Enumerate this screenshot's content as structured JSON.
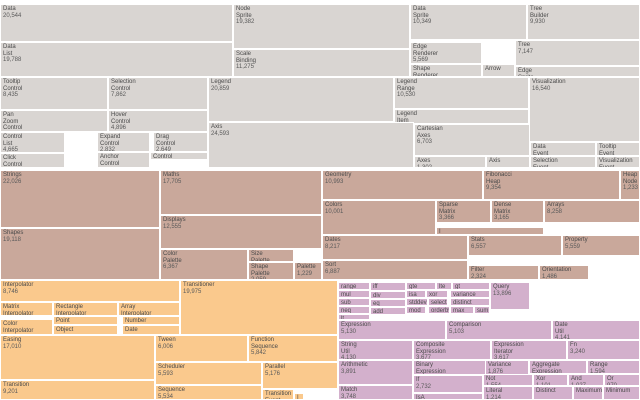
{
  "chart_data": {
    "type": "treemap",
    "palette": {
      "animate": "#fac98d",
      "data": "#d5b8d5",
      "display": "#c3bcbb",
      "physics": "#d5c6c0",
      "query": "#d3b0cc",
      "scale": "#e0dada",
      "util": "#c9a89b",
      "vis": "#d9d5d2"
    },
    "nodes": [
      {
        "group": "vis",
        "label": "Data",
        "value": "20,544"
      },
      {
        "group": "vis",
        "label": "Node\nSprite",
        "value": "19,382"
      },
      {
        "group": "vis",
        "label": "Data\nSprite",
        "value": "10,349"
      },
      {
        "group": "vis",
        "label": "Tree\nBuilder",
        "value": "9,930"
      },
      {
        "group": "vis",
        "label": "Data\nList",
        "value": "19,788"
      },
      {
        "group": "vis",
        "label": "Scale\nBinding",
        "value": "11,275"
      },
      {
        "group": "vis",
        "label": "Edge\nRenderer",
        "value": "5,569"
      },
      {
        "group": "vis",
        "label": "Tree",
        "value": "7,147"
      },
      {
        "group": "vis",
        "label": "Shape\nRenderer",
        "value": ""
      },
      {
        "group": "vis",
        "label": "Arrow",
        "value": ""
      },
      {
        "group": "vis",
        "label": "Edge\nSprite",
        "value": ""
      },
      {
        "group": "vis",
        "label": "Tooltip\nControl",
        "value": "8,435"
      },
      {
        "group": "vis",
        "label": "Selection\nControl",
        "value": "7,862"
      },
      {
        "group": "vis",
        "label": "Legend",
        "value": "20,859"
      },
      {
        "group": "vis",
        "label": "Legend\nRange",
        "value": "10,530"
      },
      {
        "group": "vis",
        "label": "Visualization",
        "value": "16,540"
      },
      {
        "group": "vis",
        "label": "Pan\nZoom\nControl",
        "value": "5,222"
      },
      {
        "group": "vis",
        "label": "Hover\nControl",
        "value": "4,896"
      },
      {
        "group": "vis",
        "label": "Legend\nItem",
        "value": ""
      },
      {
        "group": "vis",
        "label": "Axis",
        "value": "24,593"
      },
      {
        "group": "vis",
        "label": "Cartesian\nAxes",
        "value": "6,703"
      },
      {
        "group": "vis",
        "label": "Control\nList",
        "value": "4,665"
      },
      {
        "group": "vis",
        "label": "Expand\nControl",
        "value": "2,832"
      },
      {
        "group": "vis",
        "label": "Drag\nControl",
        "value": "2,649"
      },
      {
        "group": "vis",
        "label": "Data\nEvent",
        "value": ""
      },
      {
        "group": "vis",
        "label": "Tooltip\nEvent",
        "value": ""
      },
      {
        "group": "vis",
        "label": "Click\nControl",
        "value": "3,824"
      },
      {
        "group": "vis",
        "label": "Anchor\nControl",
        "value": "2,138"
      },
      {
        "group": "vis",
        "label": "Control",
        "value": ""
      },
      {
        "group": "vis",
        "label": "Axes",
        "value": "1,302"
      },
      {
        "group": "vis",
        "label": "Axis",
        "value": ""
      },
      {
        "group": "vis",
        "label": "Selection\nEvent",
        "value": ""
      },
      {
        "group": "vis",
        "label": "Visualization\nEvent",
        "value": ""
      },
      {
        "group": "util",
        "label": "Strings",
        "value": "22,026"
      },
      {
        "group": "util",
        "label": "Maths",
        "value": "17,705"
      },
      {
        "group": "util",
        "label": "Geometry",
        "value": "10,993"
      },
      {
        "group": "util",
        "label": "Fibonacci\nHeap",
        "value": "9,354"
      },
      {
        "group": "util",
        "label": "Heap\nNode",
        "value": "1,233"
      },
      {
        "group": "util",
        "label": "Colors",
        "value": "10,001"
      },
      {
        "group": "util",
        "label": "Sparse\nMatrix",
        "value": "3,366"
      },
      {
        "group": "util",
        "label": "Dense\nMatrix",
        "value": "3,165"
      },
      {
        "group": "util",
        "label": "Arrays",
        "value": "8,258"
      },
      {
        "group": "util",
        "label": "Displays",
        "value": "12,555"
      },
      {
        "group": "util",
        "label": "I\nMatrix",
        "value": ""
      },
      {
        "group": "util",
        "label": "Shapes",
        "value": "19,118"
      },
      {
        "group": "util",
        "label": "Dates",
        "value": "8,217"
      },
      {
        "group": "util",
        "label": "Stats",
        "value": "6,557"
      },
      {
        "group": "util",
        "label": "Property",
        "value": "5,559"
      },
      {
        "group": "util",
        "label": "Color\nPalette",
        "value": "6,367"
      },
      {
        "group": "util",
        "label": "Size\nPalette",
        "value": ""
      },
      {
        "group": "util",
        "label": "Shape\nPalette",
        "value": "2,059"
      },
      {
        "group": "util",
        "label": "Palette",
        "value": "1,229"
      },
      {
        "group": "util",
        "label": "Sort",
        "value": "6,887"
      },
      {
        "group": "util",
        "label": "Filter",
        "value": "2,324"
      },
      {
        "group": "util",
        "label": "Orientation",
        "value": "1,486"
      },
      {
        "group": "animate",
        "label": "Interpolator",
        "value": "8,746"
      },
      {
        "group": "animate",
        "label": "Transitioner",
        "value": "19,975"
      },
      {
        "group": "animate",
        "label": "Matrix\nInterpolator",
        "value": "2,202"
      },
      {
        "group": "animate",
        "label": "Rectangle\nInterpolator",
        "value": ""
      },
      {
        "group": "animate",
        "label": "Array\nInterpolator",
        "value": "1,983"
      },
      {
        "group": "animate",
        "label": "Point\nInterpolator",
        "value": ""
      },
      {
        "group": "animate",
        "label": "Number\nInterpolator",
        "value": ""
      },
      {
        "group": "animate",
        "label": "Color\nInterpolator",
        "value": "2,047"
      },
      {
        "group": "animate",
        "label": "Object\nInterpolator",
        "value": ""
      },
      {
        "group": "animate",
        "label": "Date\nInterpolator",
        "value": ""
      },
      {
        "group": "animate",
        "label": "Easing",
        "value": "17,010"
      },
      {
        "group": "animate",
        "label": "Tween",
        "value": "6,006"
      },
      {
        "group": "animate",
        "label": "Function\nSequence",
        "value": "5,842"
      },
      {
        "group": "animate",
        "label": "Scheduler",
        "value": "5,593"
      },
      {
        "group": "animate",
        "label": "Parallel",
        "value": "5,176"
      },
      {
        "group": "animate",
        "label": "Transition",
        "value": "9,201"
      },
      {
        "group": "animate",
        "label": "Sequence",
        "value": "5,534"
      },
      {
        "group": "animate",
        "label": "Transition\nEvent",
        "value": ""
      },
      {
        "group": "animate",
        "label": "I",
        "value": ""
      },
      {
        "group": "query",
        "label": "range",
        "value": ""
      },
      {
        "group": "query",
        "label": "iff",
        "value": ""
      },
      {
        "group": "query",
        "label": "gte",
        "value": ""
      },
      {
        "group": "query",
        "label": "lte",
        "value": ""
      },
      {
        "group": "query",
        "label": "gt",
        "value": ""
      },
      {
        "group": "query",
        "label": "Query",
        "value": "13,896"
      },
      {
        "group": "query",
        "label": "mul",
        "value": ""
      },
      {
        "group": "query",
        "label": "div",
        "value": ""
      },
      {
        "group": "query",
        "label": "isa",
        "value": ""
      },
      {
        "group": "query",
        "label": "xor",
        "value": ""
      },
      {
        "group": "query",
        "label": "variance",
        "value": ""
      },
      {
        "group": "query",
        "label": "sub",
        "value": ""
      },
      {
        "group": "query",
        "label": "eq",
        "value": ""
      },
      {
        "group": "query",
        "label": "stddev",
        "value": ""
      },
      {
        "group": "query",
        "label": "select",
        "value": ""
      },
      {
        "group": "query",
        "label": "distinct",
        "value": ""
      },
      {
        "group": "query",
        "label": "neq",
        "value": ""
      },
      {
        "group": "query",
        "label": "add",
        "value": ""
      },
      {
        "group": "query",
        "label": "mod",
        "value": ""
      },
      {
        "group": "query",
        "label": "orderby",
        "value": ""
      },
      {
        "group": "query",
        "label": "max",
        "value": ""
      },
      {
        "group": "query",
        "label": "sum",
        "value": ""
      },
      {
        "group": "query",
        "label": "lt",
        "value": ""
      },
      {
        "group": "query",
        "label": "Expression",
        "value": "5,130"
      },
      {
        "group": "query",
        "label": "Comparison",
        "value": "5,103"
      },
      {
        "group": "query",
        "label": "Date\nUtil",
        "value": "4,141"
      },
      {
        "group": "query",
        "label": "String\nUtil",
        "value": "4,130"
      },
      {
        "group": "query",
        "label": "Composite\nExpression",
        "value": "3,677"
      },
      {
        "group": "query",
        "label": "Expression\nIterator",
        "value": "3,617"
      },
      {
        "group": "query",
        "label": "Fn",
        "value": "3,240"
      },
      {
        "group": "query",
        "label": "Arithmetic",
        "value": "3,891"
      },
      {
        "group": "query",
        "label": "Binary\nExpression",
        "value": "2,893"
      },
      {
        "group": "query",
        "label": "Variance",
        "value": "1,876"
      },
      {
        "group": "query",
        "label": "Aggregate\nExpression",
        "value": "1,616"
      },
      {
        "group": "query",
        "label": "Range",
        "value": "1,594"
      },
      {
        "group": "query",
        "label": "Match",
        "value": "3,748"
      },
      {
        "group": "query",
        "label": "If",
        "value": "2,732"
      },
      {
        "group": "query",
        "label": "Not",
        "value": "1,554"
      },
      {
        "group": "query",
        "label": "Xor",
        "value": "1,101"
      },
      {
        "group": "query",
        "label": "And",
        "value": "1,027"
      },
      {
        "group": "query",
        "label": "Or",
        "value": "970"
      },
      {
        "group": "query",
        "label": "IsA",
        "value": ""
      },
      {
        "group": "query",
        "label": "Literal",
        "value": "1,214"
      },
      {
        "group": "query",
        "label": "Distinct",
        "value": ""
      },
      {
        "group": "query",
        "label": "Maximum",
        "value": ""
      },
      {
        "group": "query",
        "label": "Minimum",
        "value": ""
      }
    ]
  }
}
